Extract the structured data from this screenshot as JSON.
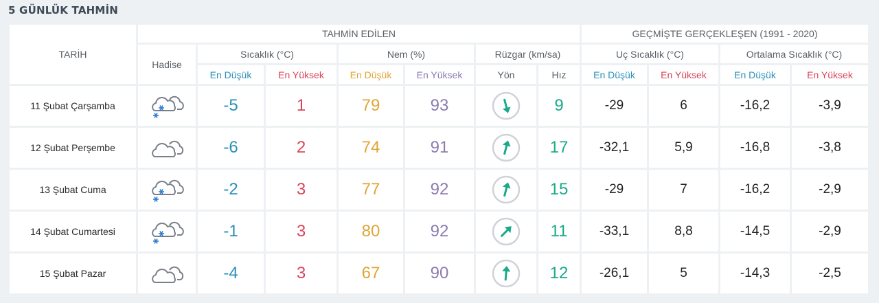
{
  "title": "5 GÜNLÜK TAHMİN",
  "headers": {
    "tarih": "TARİH",
    "hadise": "Hadise",
    "tahmin": "TAHMİN EDİLEN",
    "gecmis": "GEÇMİŞTE GERÇEKLEŞEN (1991 - 2020)",
    "sicaklik": "Sıcaklık (°C)",
    "nem": "Nem (%)",
    "ruzgar": "Rüzgar (km/sa)",
    "uc": "Uç Sıcaklık (°C)",
    "ortalama": "Ortalama Sıcaklık (°C)",
    "en_dusuk": "En Düşük",
    "en_yuksek": "En Yüksek",
    "yon": "Yön",
    "hiz": "Hız"
  },
  "rows": [
    {
      "date": "11 Şubat Çarşamba",
      "icon": "snow-cloud-icon",
      "tmin": "-5",
      "tmax": "1",
      "hmin": "79",
      "hmax": "93",
      "wind_dir_deg": 165,
      "speed": "9",
      "uc_min": "-29",
      "uc_max": "6",
      "ort_min": "-16,2",
      "ort_max": "-3,9"
    },
    {
      "date": "12 Şubat Perşembe",
      "icon": "cloud-icon",
      "tmin": "-6",
      "tmax": "2",
      "hmin": "74",
      "hmax": "91",
      "wind_dir_deg": 15,
      "speed": "17",
      "uc_min": "-32,1",
      "uc_max": "5,9",
      "ort_min": "-16,8",
      "ort_max": "-3,8"
    },
    {
      "date": "13 Şubat Cuma",
      "icon": "snow-cloud-icon",
      "tmin": "-2",
      "tmax": "3",
      "hmin": "77",
      "hmax": "92",
      "wind_dir_deg": 15,
      "speed": "15",
      "uc_min": "-29",
      "uc_max": "7",
      "ort_min": "-16,2",
      "ort_max": "-2,9"
    },
    {
      "date": "14 Şubat Cumartesi",
      "icon": "snow-cloud-icon",
      "tmin": "-1",
      "tmax": "3",
      "hmin": "80",
      "hmax": "92",
      "wind_dir_deg": 45,
      "speed": "11",
      "uc_min": "-33,1",
      "uc_max": "8,8",
      "ort_min": "-14,5",
      "ort_max": "-2,9"
    },
    {
      "date": "15 Şubat Pazar",
      "icon": "cloud-icon",
      "tmin": "-4",
      "tmax": "3",
      "hmin": "67",
      "hmax": "90",
      "wind_dir_deg": 5,
      "speed": "12",
      "uc_min": "-26,1",
      "uc_max": "5",
      "ort_min": "-14,3",
      "ort_max": "-2,5"
    }
  ],
  "colors": {
    "low": "#2b8fb8",
    "high": "#d9435a",
    "hum_low": "#e0a535",
    "hum_high": "#8b7bb0",
    "wind": "#1aa98a"
  }
}
